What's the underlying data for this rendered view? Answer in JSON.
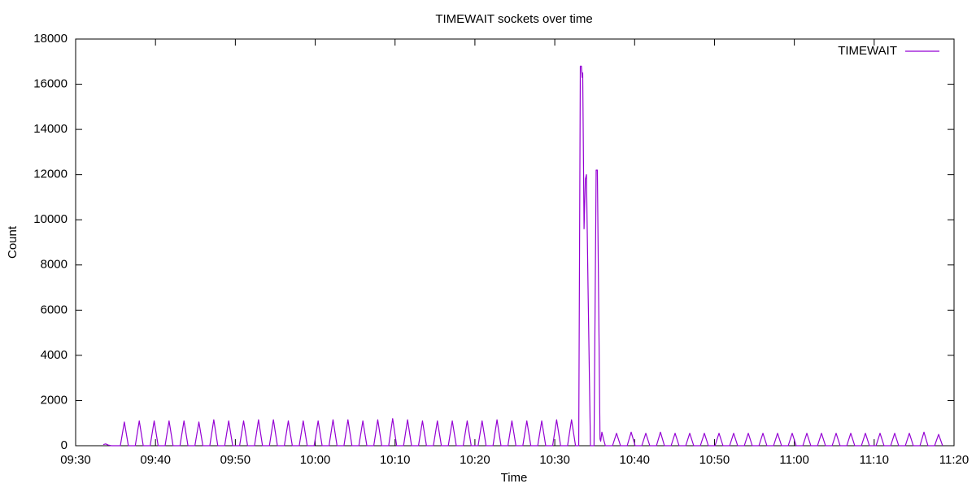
{
  "chart_data": {
    "type": "line",
    "title": "TIMEWAIT sockets over time",
    "x_label": "Time",
    "y_label": "Count",
    "legend": "top-right",
    "xlim": [
      "09:30:00",
      "11:20:00"
    ],
    "xticks": [
      {
        "value": "09:30:00",
        "label": "09:30"
      },
      {
        "value": "09:40:00",
        "label": "09:40"
      },
      {
        "value": "09:50:00",
        "label": "09:50"
      },
      {
        "value": "10:00:00",
        "label": "10:00"
      },
      {
        "value": "10:10:00",
        "label": "10:10"
      },
      {
        "value": "10:20:00",
        "label": "10:20"
      },
      {
        "value": "10:30:00",
        "label": "10:30"
      },
      {
        "value": "10:40:00",
        "label": "10:40"
      },
      {
        "value": "10:50:00",
        "label": "10:50"
      },
      {
        "value": "11:00:00",
        "label": "11:00"
      },
      {
        "value": "11:10:00",
        "label": "11:10"
      },
      {
        "value": "11:20:00",
        "label": "11:20"
      }
    ],
    "ylim": [
      0,
      18000
    ],
    "yticks": [
      0,
      2000,
      4000,
      6000,
      8000,
      10000,
      12000,
      14000,
      16000,
      18000
    ],
    "x": [
      "09:33:28",
      "09:33:46",
      "09:34:05",
      "09:34:30",
      "09:35:36",
      "09:36:06",
      "09:36:36",
      "09:37:28",
      "09:37:58",
      "09:38:28",
      "09:39:20",
      "09:39:50",
      "09:40:20",
      "09:41:12",
      "09:41:42",
      "09:42:12",
      "09:43:04",
      "09:43:34",
      "09:44:04",
      "09:44:56",
      "09:45:26",
      "09:45:56",
      "09:46:48",
      "09:47:18",
      "09:47:48",
      "09:48:40",
      "09:49:10",
      "09:49:40",
      "09:50:32",
      "09:51:02",
      "09:51:32",
      "09:52:24",
      "09:52:54",
      "09:53:24",
      "09:54:16",
      "09:54:46",
      "09:55:16",
      "09:56:08",
      "09:56:38",
      "09:57:08",
      "09:58:00",
      "09:58:30",
      "09:59:00",
      "09:59:52",
      "10:00:22",
      "10:00:52",
      "10:01:44",
      "10:02:14",
      "10:02:44",
      "10:03:36",
      "10:04:06",
      "10:04:36",
      "10:05:28",
      "10:05:58",
      "10:06:28",
      "10:07:20",
      "10:07:50",
      "10:08:20",
      "10:09:12",
      "10:09:42",
      "10:10:12",
      "10:11:04",
      "10:11:34",
      "10:12:04",
      "10:12:56",
      "10:13:26",
      "10:13:56",
      "10:14:48",
      "10:15:18",
      "10:15:48",
      "10:16:40",
      "10:17:10",
      "10:17:40",
      "10:18:32",
      "10:19:02",
      "10:19:32",
      "10:20:24",
      "10:20:54",
      "10:21:24",
      "10:22:16",
      "10:22:46",
      "10:23:16",
      "10:24:08",
      "10:24:38",
      "10:25:08",
      "10:26:00",
      "10:26:30",
      "10:27:00",
      "10:27:52",
      "10:28:22",
      "10:28:52",
      "10:29:44",
      "10:30:14",
      "10:30:44",
      "10:31:36",
      "10:32:06",
      "10:32:36",
      "10:33:00",
      "10:33:12",
      "10:33:20",
      "10:33:26",
      "10:33:30",
      "10:33:40",
      "10:33:50",
      "10:33:58",
      "10:34:10",
      "10:34:28",
      "10:34:55",
      "10:35:11",
      "10:35:20",
      "10:35:40",
      "10:35:45",
      "10:35:54",
      "10:36:06",
      "10:36:20",
      "10:37:14",
      "10:37:44",
      "10:38:14",
      "10:39:04",
      "10:39:34",
      "10:40:04",
      "10:40:54",
      "10:41:24",
      "10:41:54",
      "10:42:44",
      "10:43:14",
      "10:43:44",
      "10:44:34",
      "10:45:04",
      "10:45:34",
      "10:46:24",
      "10:46:54",
      "10:47:24",
      "10:48:14",
      "10:48:44",
      "10:49:14",
      "10:50:04",
      "10:50:34",
      "10:51:04",
      "10:51:54",
      "10:52:24",
      "10:52:54",
      "10:53:44",
      "10:54:14",
      "10:54:44",
      "10:55:34",
      "10:56:04",
      "10:56:34",
      "10:57:24",
      "10:57:54",
      "10:58:24",
      "10:59:14",
      "10:59:44",
      "11:00:14",
      "11:01:04",
      "11:01:34",
      "11:02:04",
      "11:02:54",
      "11:03:24",
      "11:03:54",
      "11:04:44",
      "11:05:14",
      "11:05:44",
      "11:06:34",
      "11:07:04",
      "11:07:34",
      "11:08:24",
      "11:08:54",
      "11:09:24",
      "11:10:14",
      "11:10:44",
      "11:11:14",
      "11:12:04",
      "11:12:34",
      "11:13:04",
      "11:13:54",
      "11:14:24",
      "11:14:54",
      "11:15:44",
      "11:16:14",
      "11:16:44",
      "11:17:34",
      "11:18:04",
      "11:18:34"
    ],
    "series": [
      {
        "name": "TIMEWAIT",
        "color": "#9400d3",
        "values": [
          50,
          80,
          30,
          0,
          0,
          1050,
          0,
          0,
          1100,
          0,
          0,
          1100,
          0,
          0,
          1100,
          0,
          0,
          1100,
          0,
          0,
          1050,
          0,
          0,
          1150,
          0,
          0,
          1100,
          0,
          0,
          1100,
          0,
          0,
          1150,
          0,
          0,
          1150,
          0,
          0,
          1100,
          0,
          0,
          1100,
          0,
          0,
          1100,
          0,
          0,
          1150,
          0,
          0,
          1150,
          0,
          0,
          1100,
          0,
          0,
          1150,
          0,
          0,
          1200,
          0,
          0,
          1150,
          0,
          0,
          1100,
          0,
          0,
          1100,
          0,
          0,
          1100,
          0,
          0,
          1100,
          0,
          0,
          1100,
          0,
          0,
          1150,
          0,
          0,
          1100,
          0,
          0,
          1100,
          0,
          0,
          1100,
          0,
          0,
          1150,
          0,
          0,
          1150,
          0,
          0,
          16800,
          16800,
          16300,
          16500,
          9600,
          11800,
          12000,
          7000,
          0,
          0,
          12200,
          12200,
          300,
          200,
          600,
          300,
          0,
          0,
          550,
          0,
          0,
          600,
          0,
          0,
          550,
          0,
          0,
          600,
          0,
          0,
          550,
          0,
          0,
          550,
          0,
          0,
          550,
          0,
          0,
          550,
          0,
          0,
          550,
          0,
          0,
          550,
          0,
          0,
          550,
          0,
          0,
          550,
          0,
          0,
          550,
          0,
          0,
          550,
          0,
          0,
          550,
          0,
          0,
          550,
          0,
          0,
          550,
          0,
          0,
          550,
          0,
          0,
          550,
          0,
          0,
          550,
          0,
          0,
          550,
          0,
          0,
          600,
          0,
          0,
          500,
          0
        ]
      }
    ]
  }
}
